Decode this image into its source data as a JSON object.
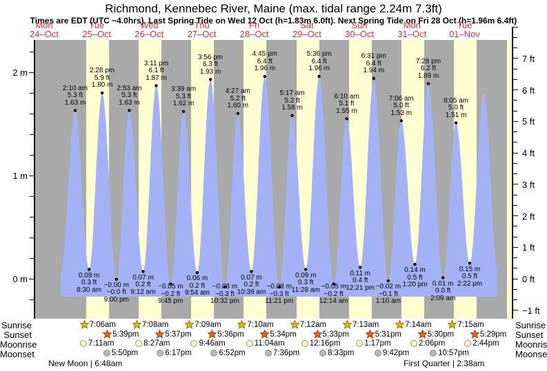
{
  "title": "Richmond, Kennebec River, Maine (max. tidal range 2.24m 7.3ft)",
  "subtitle": "Times are EDT (UTC −4.0hrs). Last Spring Tide on Wed 12 Oct (h=1.83m 6.0ft). Next Spring Tide on Fri 28 Oct (h=1.96m 6.4ft)",
  "days": [
    {
      "dow": "Mon",
      "date": "24–Oct"
    },
    {
      "dow": "Tue",
      "date": "25–Oct"
    },
    {
      "dow": "Wed",
      "date": "26–Oct"
    },
    {
      "dow": "Thu",
      "date": "27–Oct"
    },
    {
      "dow": "Fri",
      "date": "28–Oct"
    },
    {
      "dow": "Sat",
      "date": "29–Oct"
    },
    {
      "dow": "Sun",
      "date": "30–Oct"
    },
    {
      "dow": "Mon",
      "date": "31–Oct"
    },
    {
      "dow": "Tue",
      "date": "01–Nov"
    }
  ],
  "axes": {
    "left_majors": [
      {
        "label": "2 m",
        "value": 2
      },
      {
        "label": "1 m",
        "value": 1
      },
      {
        "label": "0 m",
        "value": 0
      }
    ],
    "right_majors": [
      {
        "label": "7 ft",
        "value": 7
      },
      {
        "label": "6 ft",
        "value": 6
      },
      {
        "label": "5 ft",
        "value": 5
      },
      {
        "label": "4 ft",
        "value": 4
      },
      {
        "label": "3 ft",
        "value": 3
      },
      {
        "label": "2 ft",
        "value": 2
      },
      {
        "label": "1 ft",
        "value": 1
      },
      {
        "label": "0 ft",
        "value": 0
      },
      {
        "label": "−1 ft",
        "value": -1
      }
    ]
  },
  "chart_data": {
    "type": "area",
    "series_name": "tide height",
    "ylabel_left_unit": "m",
    "ylabel_right_unit": "ft",
    "extremes": [
      {
        "kind": "high",
        "day": 1,
        "time": "2:10 am",
        "ft": "5.3 ft",
        "m": "1.63 m",
        "h": 1.63
      },
      {
        "kind": "low",
        "day": 1,
        "time": "8:30 am",
        "ft": "0.3 ft",
        "m": "0.09 m",
        "h": 0.09
      },
      {
        "kind": "high",
        "day": 1,
        "time": "2:28 pm",
        "ft": "5.9 ft",
        "m": "1.80 m",
        "h": 1.8
      },
      {
        "kind": "low",
        "day": 1,
        "time": "9:00 pm",
        "ft": "−0.0 ft",
        "m": "−0.00 m",
        "h": -0.005
      },
      {
        "kind": "high",
        "day": 2,
        "time": "2:53 am",
        "ft": "5.3 ft",
        "m": "1.63 m",
        "h": 1.63
      },
      {
        "kind": "low",
        "day": 2,
        "time": "9:12 am",
        "ft": "0.2 ft",
        "m": "0.07 m",
        "h": 0.07
      },
      {
        "kind": "high",
        "day": 2,
        "time": "3:11 pm",
        "ft": "6.1 ft",
        "m": "1.87 m",
        "h": 1.87
      },
      {
        "kind": "low",
        "day": 2,
        "time": "9:45 pm",
        "ft": "−0.2 ft",
        "m": "−0.05 m",
        "h": -0.05
      },
      {
        "kind": "high",
        "day": 3,
        "time": "3:39 am",
        "ft": "5.3 ft",
        "m": "1.62 m",
        "h": 1.62
      },
      {
        "kind": "low",
        "day": 3,
        "time": "9:54 am",
        "ft": "0.2 ft",
        "m": "0.06 m",
        "h": 0.06
      },
      {
        "kind": "high",
        "day": 3,
        "time": "3:56 pm",
        "ft": "6.3 ft",
        "m": "1.93 m",
        "h": 1.93
      },
      {
        "kind": "low",
        "day": 3,
        "time": "10:32 pm",
        "ft": "−0.3 ft",
        "m": "−0.08 m",
        "h": -0.08
      },
      {
        "kind": "high",
        "day": 4,
        "time": "4:27 am",
        "ft": "5.2 ft",
        "m": "1.60 m",
        "h": 1.6
      },
      {
        "kind": "low",
        "day": 4,
        "time": "10:39 am",
        "ft": "0.2 ft",
        "m": "0.07 m",
        "h": 0.07
      },
      {
        "kind": "high",
        "day": 4,
        "time": "4:45 pm",
        "ft": "6.4 ft",
        "m": "1.96 m",
        "h": 1.96
      },
      {
        "kind": "low",
        "day": 4,
        "time": "11:21 pm",
        "ft": "−0.3 ft",
        "m": "−0.08 m",
        "h": -0.08
      },
      {
        "kind": "high",
        "day": 5,
        "time": "5:17 am",
        "ft": "5.2 ft",
        "m": "1.58 m",
        "h": 1.58
      },
      {
        "kind": "low",
        "day": 5,
        "time": "11:28 am",
        "ft": "0.3 ft",
        "m": "0.09 m",
        "h": 0.09
      },
      {
        "kind": "high",
        "day": 5,
        "time": "5:36 pm",
        "ft": "6.4 ft",
        "m": "1.96 m",
        "h": 1.96
      },
      {
        "kind": "low",
        "day": 6,
        "time": "12:14 am",
        "ft": "−0.2 ft",
        "m": "−0.05 m",
        "h": -0.05
      },
      {
        "kind": "high",
        "day": 6,
        "time": "6:10 am",
        "ft": "5.1 ft",
        "m": "1.55 m",
        "h": 1.55
      },
      {
        "kind": "low",
        "day": 6,
        "time": "12:21 pm",
        "ft": "0.4 ft",
        "m": "0.11 m",
        "h": 0.11
      },
      {
        "kind": "high",
        "day": 6,
        "time": "6:31 pm",
        "ft": "6.4 ft",
        "m": "1.94 m",
        "h": 1.94
      },
      {
        "kind": "low",
        "day": 7,
        "time": "1:10 am",
        "ft": "−0.1 ft",
        "m": "−0.02 m",
        "h": -0.02
      },
      {
        "kind": "high",
        "day": 7,
        "time": "7:06 am",
        "ft": "5.0 ft",
        "m": "1.53 m",
        "h": 1.53
      },
      {
        "kind": "low",
        "day": 7,
        "time": "1:20 pm",
        "ft": "0.5 ft",
        "m": "0.14 m",
        "h": 0.14
      },
      {
        "kind": "high",
        "day": 7,
        "time": "7:28 pm",
        "ft": "6.2 ft",
        "m": "1.89 m",
        "h": 1.89
      },
      {
        "kind": "low",
        "day": 8,
        "time": "2:09 am",
        "ft": "0.0 ft",
        "m": "0.01 m",
        "h": 0.01
      },
      {
        "kind": "high",
        "day": 8,
        "time": "8:05 am",
        "ft": "5.0 ft",
        "m": "1.51 m",
        "h": 1.51
      },
      {
        "kind": "low",
        "day": 8,
        "time": "2:22 pm",
        "ft": "0.5 ft",
        "m": "0.15 m",
        "h": 0.15
      }
    ],
    "curve_edges": [
      {
        "day": 0,
        "time": "7:30 pm",
        "h": 0.05
      },
      {
        "day": 8,
        "time": "8:50 pm",
        "h": 1.8
      },
      {
        "day": 9,
        "time": "3:00 am",
        "h": 0.1
      }
    ]
  },
  "sun_moon": {
    "sunrise": {
      "label": "Sunrise",
      "start_day": 1,
      "times": [
        "7:06am",
        "7:08am",
        "7:09am",
        "7:10am",
        "7:12am",
        "7:13am",
        "7:14am",
        "7:15am"
      ]
    },
    "sunset": {
      "label": "Sunset",
      "start_day": 1,
      "times": [
        "5:39pm",
        "5:37pm",
        "5:36pm",
        "5:34pm",
        "5:33pm",
        "5:31pm",
        "5:30pm",
        "5:29pm"
      ]
    },
    "moonrise": {
      "label": "Moonrise",
      "start_day": 1,
      "times": [
        "7:11am",
        "8:27am",
        "9:46am",
        "11:04am",
        "12:16pm",
        "1:17pm",
        "2:06pm",
        "2:44pm"
      ]
    },
    "moonset": {
      "label": "Moonset",
      "start_day": 1,
      "times": [
        "5:50pm",
        "6:17pm",
        "6:52pm",
        "7:36pm",
        "8:33pm",
        "9:42pm",
        "10:57pm"
      ]
    },
    "phases": [
      {
        "label": "New Moon",
        "time": "6:48am",
        "day": 1
      },
      {
        "label": "First Quarter",
        "time": "2:38am",
        "day": 8
      }
    ]
  },
  "colors": {
    "night_band": "#a9a9a9",
    "daylight_band": "#ffffd2",
    "tide_fill": "#a3b2f4",
    "day_label": "#e03030",
    "sunrise_star": "#ddb70f",
    "sunrise_star_edge": "#7a6a00",
    "sunset_star": "#e9611c",
    "sunset_star_edge": "#8a3500",
    "moonrise_fill": "#ffffcc",
    "moon_border": "#8f8f8f",
    "moonset_fill": "#b9b9b1"
  }
}
